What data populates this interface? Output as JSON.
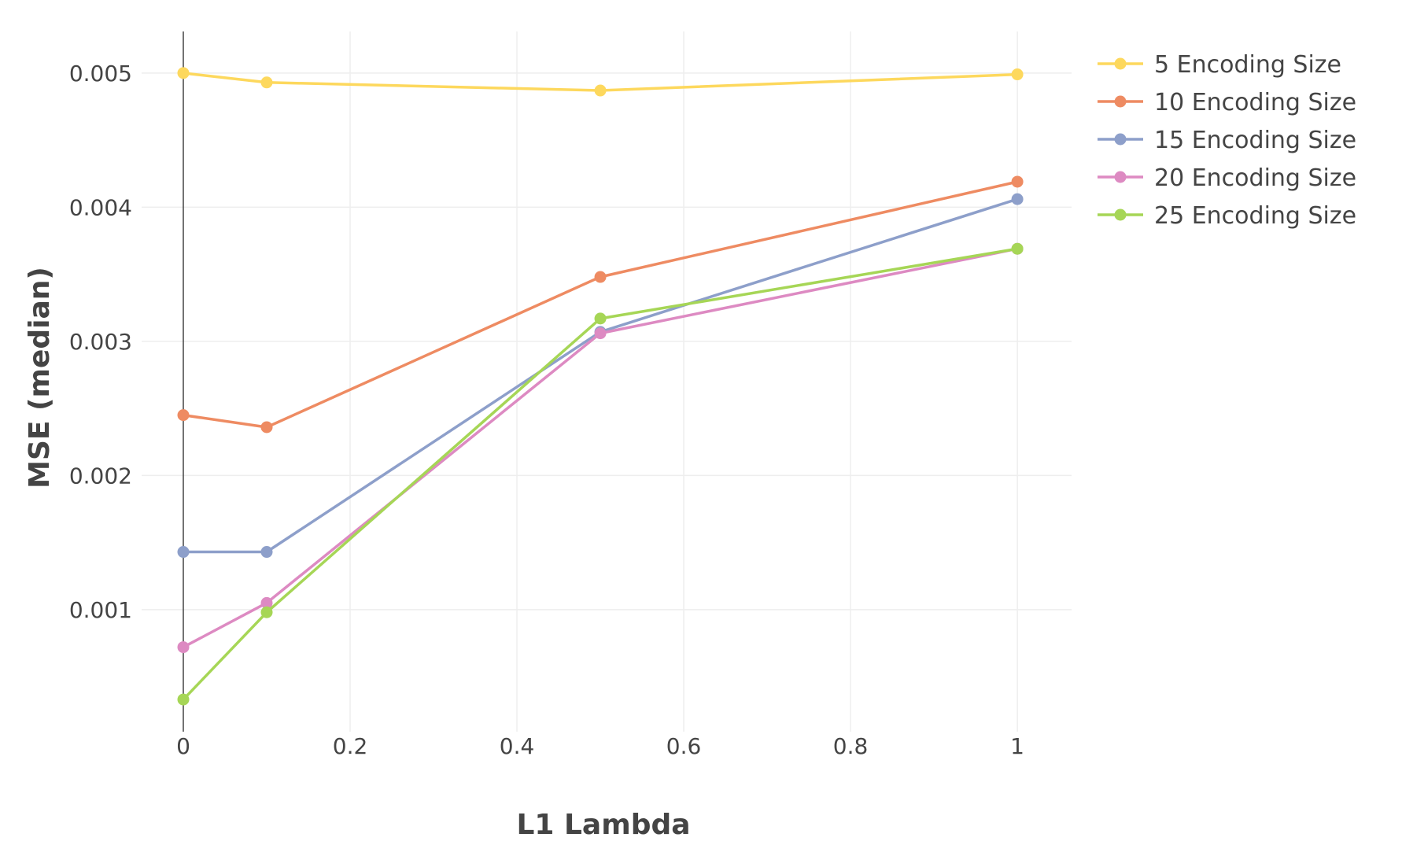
{
  "chart_data": {
    "type": "line",
    "xlabel": "L1 Lambda",
    "ylabel": "MSE (median)",
    "xlim": [
      -0.05,
      1.065
    ],
    "ylim": [
      9e-05,
      0.00531
    ],
    "x_ticks": [
      0,
      0.2,
      0.4,
      0.6,
      0.8,
      1
    ],
    "x_tick_labels": [
      "0",
      "0.2",
      "0.4",
      "0.6",
      "0.8",
      "1"
    ],
    "y_ticks": [
      0.001,
      0.002,
      0.003,
      0.004,
      0.005
    ],
    "y_tick_labels": [
      "0.001",
      "0.002",
      "0.003",
      "0.004",
      "0.005"
    ],
    "grid": true,
    "legend_position": "top-right",
    "x": [
      0,
      0.1,
      0.5,
      1
    ],
    "series": [
      {
        "name": "5 Encoding Size",
        "color": "#fdd85d",
        "values": [
          0.005,
          0.00493,
          0.00487,
          0.00499
        ]
      },
      {
        "name": "10 Encoding Size",
        "color": "#ee8b62",
        "values": [
          0.00245,
          0.00236,
          0.00348,
          0.00419
        ]
      },
      {
        "name": "15 Encoding Size",
        "color": "#8d9fca",
        "values": [
          0.00143,
          0.00143,
          0.00307,
          0.00406
        ]
      },
      {
        "name": "20 Encoding Size",
        "color": "#dd8ac2",
        "values": [
          0.00072,
          0.00105,
          0.00306,
          0.00369
        ]
      },
      {
        "name": "25 Encoding Size",
        "color": "#a6d656",
        "values": [
          0.00033,
          0.00098,
          0.00317,
          0.00369
        ]
      }
    ]
  }
}
